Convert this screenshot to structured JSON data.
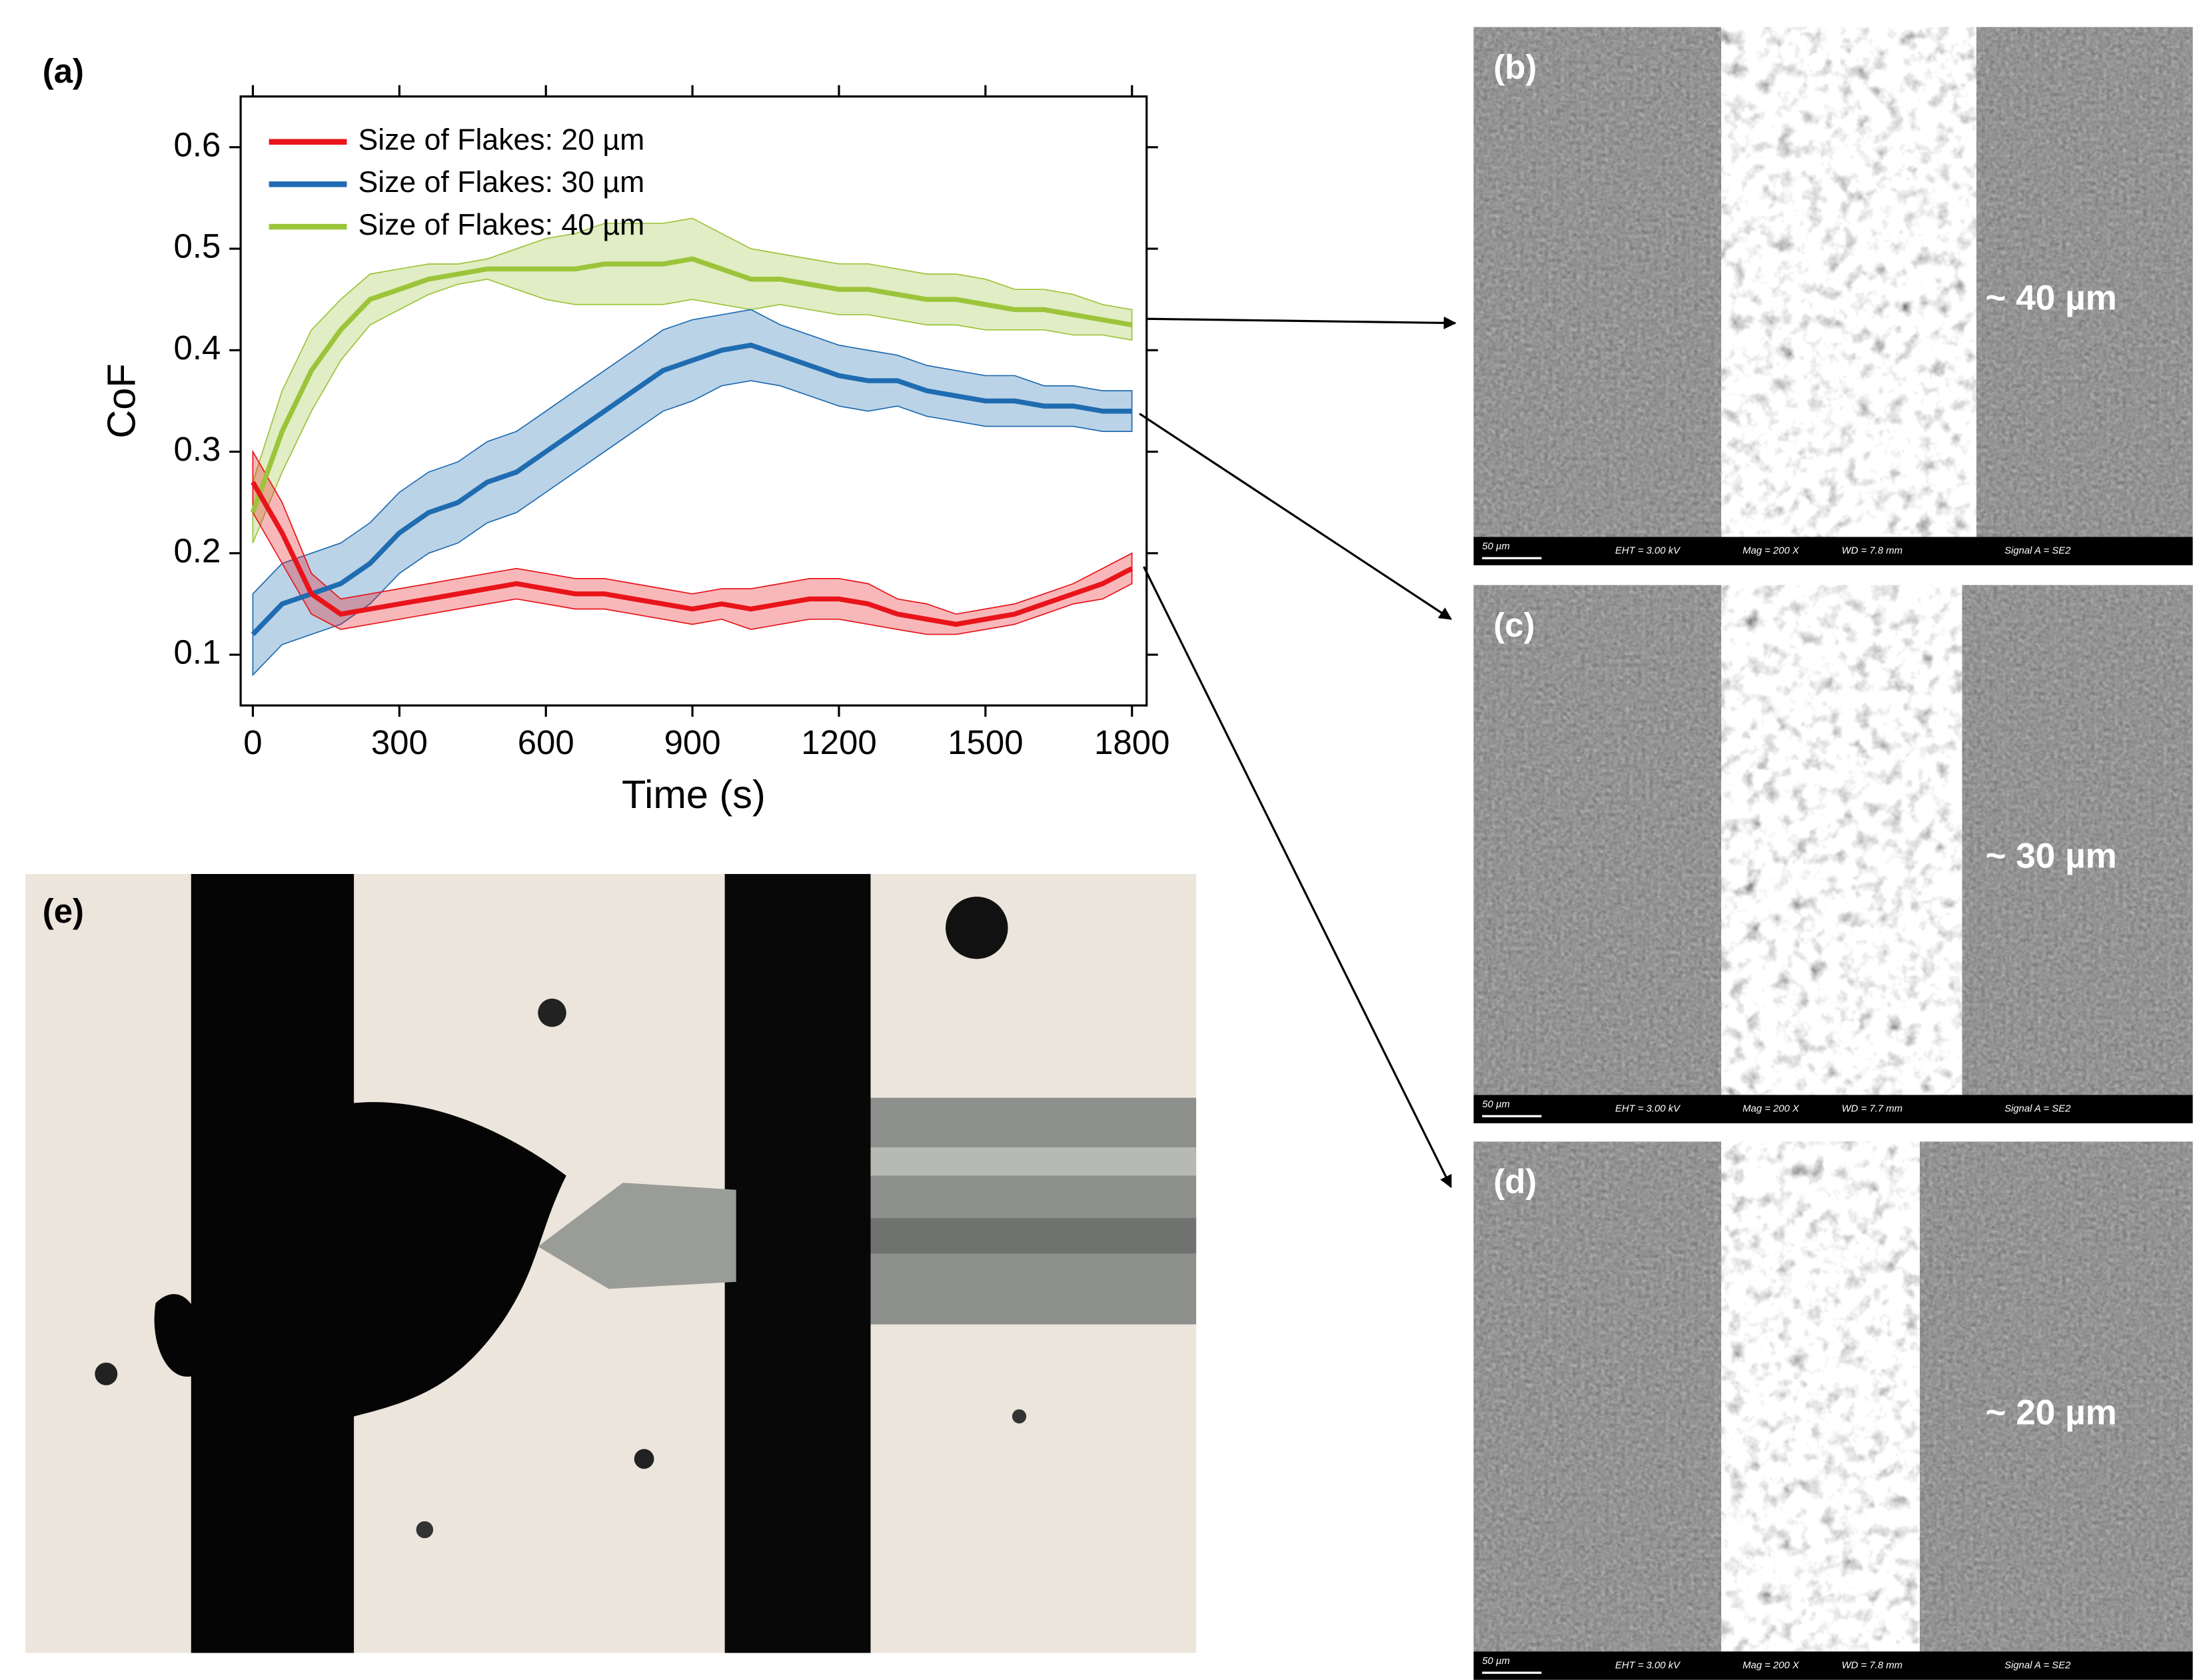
{
  "chart_data": {
    "type": "line",
    "panel_label": "(a)",
    "x_label": "Time (s)",
    "y_label": "CoF",
    "x": [
      0,
      60,
      120,
      180,
      240,
      300,
      360,
      420,
      480,
      540,
      600,
      660,
      720,
      780,
      840,
      900,
      960,
      1020,
      1080,
      1140,
      1200,
      1260,
      1320,
      1380,
      1440,
      1500,
      1560,
      1620,
      1680,
      1740,
      1800
    ],
    "xlim": [
      -25,
      1830
    ],
    "ylim": [
      0.05,
      0.65
    ],
    "xticks": [
      0,
      300,
      600,
      900,
      1200,
      1500,
      1800
    ],
    "yticks": [
      0.1,
      0.2,
      0.3,
      0.4,
      0.5,
      0.6
    ],
    "legend": "upper left",
    "series": [
      {
        "name": "Size of Flakes: 20 µm",
        "color": "#e8141a",
        "values": [
          0.27,
          0.22,
          0.16,
          0.14,
          0.145,
          0.15,
          0.155,
          0.16,
          0.165,
          0.17,
          0.165,
          0.16,
          0.16,
          0.155,
          0.15,
          0.145,
          0.15,
          0.145,
          0.15,
          0.155,
          0.155,
          0.15,
          0.14,
          0.135,
          0.13,
          0.135,
          0.14,
          0.15,
          0.16,
          0.17,
          0.185
        ],
        "errors": [
          0.03,
          0.03,
          0.02,
          0.015,
          0.015,
          0.015,
          0.015,
          0.015,
          0.015,
          0.015,
          0.015,
          0.015,
          0.015,
          0.015,
          0.015,
          0.015,
          0.015,
          0.02,
          0.02,
          0.02,
          0.02,
          0.02,
          0.015,
          0.015,
          0.01,
          0.01,
          0.01,
          0.01,
          0.01,
          0.015,
          0.015
        ]
      },
      {
        "name": "Size of Flakes: 30 µm",
        "color": "#1f6cb0",
        "values": [
          0.12,
          0.15,
          0.16,
          0.17,
          0.19,
          0.22,
          0.24,
          0.25,
          0.27,
          0.28,
          0.3,
          0.32,
          0.34,
          0.36,
          0.38,
          0.39,
          0.4,
          0.405,
          0.395,
          0.385,
          0.375,
          0.37,
          0.37,
          0.36,
          0.355,
          0.35,
          0.35,
          0.345,
          0.345,
          0.34,
          0.34
        ],
        "errors": [
          0.04,
          0.04,
          0.04,
          0.04,
          0.04,
          0.04,
          0.04,
          0.04,
          0.04,
          0.04,
          0.04,
          0.04,
          0.04,
          0.04,
          0.04,
          0.04,
          0.035,
          0.035,
          0.03,
          0.03,
          0.03,
          0.03,
          0.025,
          0.025,
          0.025,
          0.025,
          0.025,
          0.02,
          0.02,
          0.02,
          0.02
        ]
      },
      {
        "name": "Size of Flakes: 40 µm",
        "color": "#9cc43a",
        "values": [
          0.24,
          0.32,
          0.38,
          0.42,
          0.45,
          0.46,
          0.47,
          0.475,
          0.48,
          0.48,
          0.48,
          0.48,
          0.485,
          0.485,
          0.485,
          0.49,
          0.48,
          0.47,
          0.47,
          0.465,
          0.46,
          0.46,
          0.455,
          0.45,
          0.45,
          0.445,
          0.44,
          0.44,
          0.435,
          0.43,
          0.425
        ],
        "errors": [
          0.03,
          0.04,
          0.04,
          0.03,
          0.025,
          0.02,
          0.015,
          0.01,
          0.01,
          0.02,
          0.03,
          0.035,
          0.04,
          0.04,
          0.04,
          0.04,
          0.035,
          0.03,
          0.025,
          0.025,
          0.025,
          0.025,
          0.025,
          0.025,
          0.025,
          0.025,
          0.02,
          0.02,
          0.02,
          0.015,
          0.015
        ]
      }
    ]
  },
  "panels": [
    {
      "label": "(b)",
      "annotation": "~ 40 µm",
      "scale_bar": "50 µm",
      "info": [
        "EHT = 3.00 kV",
        "Mag = 200 X",
        "WD = 7.8 mm",
        "Signal A = SE2"
      ]
    },
    {
      "label": "(c)",
      "annotation": "~ 30 µm",
      "scale_bar": "50 µm",
      "info": [
        "EHT = 3.00 kV",
        "Mag = 200 X",
        "WD = 7.7 mm",
        "Signal A = SE2"
      ]
    },
    {
      "label": "(d)",
      "annotation": "~ 20 µm",
      "scale_bar": "50 µm",
      "info": [
        "EHT = 3.00 kV",
        "Mag = 200 X",
        "WD = 7.8 mm",
        "Signal A = SE2"
      ]
    }
  ],
  "optical": {
    "label": "(e)"
  }
}
